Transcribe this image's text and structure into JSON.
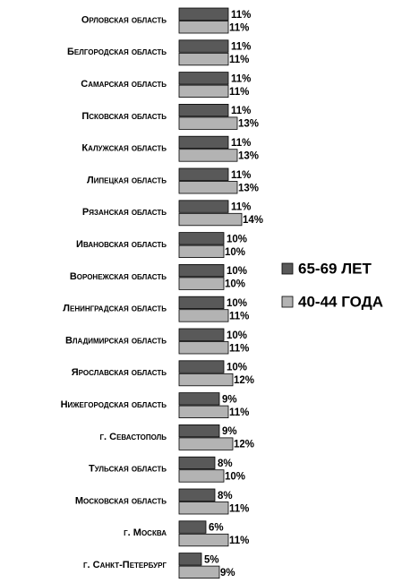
{
  "chart_data": {
    "type": "bar",
    "orientation": "horizontal",
    "categories": [
      "Орловская область",
      "Белгородская область",
      "Самарская область",
      "Псковская область",
      "Калужская область",
      "Липецкая область",
      "Рязанская область",
      "Ивановская область",
      "Воронежская область",
      "Ленинградская область",
      "Владимирская область",
      "Ярославская область",
      "Нижегородская область",
      "г. Севастополь",
      "Тульская область",
      "Московская область",
      "г. Москва",
      "г. Санкт-Петербург"
    ],
    "series": [
      {
        "name": "65-69 ЛЕТ",
        "color": "#595959",
        "values": [
          11,
          11,
          11,
          11,
          11,
          11,
          11,
          10,
          10,
          10,
          10,
          10,
          9,
          9,
          8,
          8,
          6,
          5
        ],
        "value_labels": [
          "11%",
          "11%",
          "11%",
          "11%",
          "11%",
          "11%",
          "11%",
          "10%",
          "10%",
          "10%",
          "10%",
          "10%",
          "9%",
          "9%",
          "8%",
          "8%",
          "6%",
          "5%"
        ]
      },
      {
        "name": "40-44 ГОДА",
        "color": "#b3b3b3",
        "values": [
          11,
          11,
          11,
          13,
          13,
          13,
          14,
          10,
          10,
          11,
          11,
          12,
          11,
          12,
          10,
          11,
          11,
          9
        ],
        "value_labels": [
          "11%",
          "11%",
          "11%",
          "13%",
          "13%",
          "13%",
          "14%",
          "10%",
          "10%",
          "11%",
          "11%",
          "12%",
          "11%",
          "12%",
          "10%",
          "11%",
          "11%",
          "9%"
        ]
      }
    ],
    "legend": "right"
  }
}
